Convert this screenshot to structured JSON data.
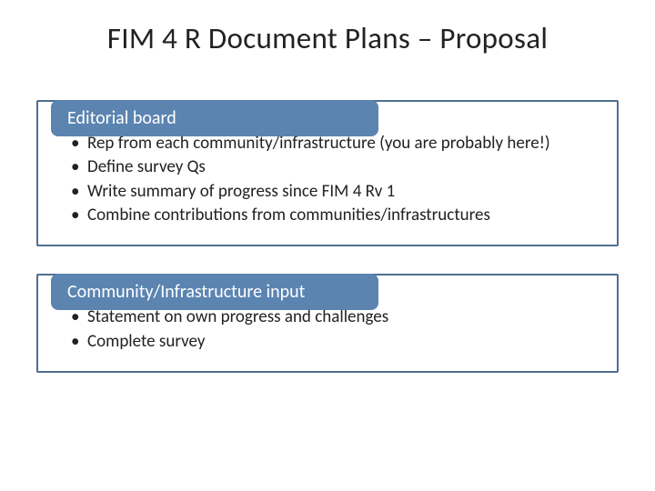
{
  "title": "FIM 4 R Document Plans – Proposal",
  "sections": [
    {
      "header": "Editorial board",
      "bullets": [
        "Rep from each community/infrastructure (you are probably here!)",
        "Define survey Qs",
        "Write summary of progress since FIM 4 Rv 1",
        "Combine contributions from communities/infrastructures"
      ]
    },
    {
      "header": "Community/Infrastructure input",
      "bullets": [
        "Statement on own progress and challenges",
        "Complete survey"
      ]
    }
  ],
  "colors": {
    "header_bg": "#5b84b1",
    "header_text": "#ffffff",
    "border": "#4f6e8e",
    "body_text": "#222222",
    "page_bg": "#ffffff"
  },
  "typography": {
    "title_fontsize": 33,
    "header_fontsize": 20,
    "bullet_fontsize": 19,
    "font_family": "Calibri"
  }
}
